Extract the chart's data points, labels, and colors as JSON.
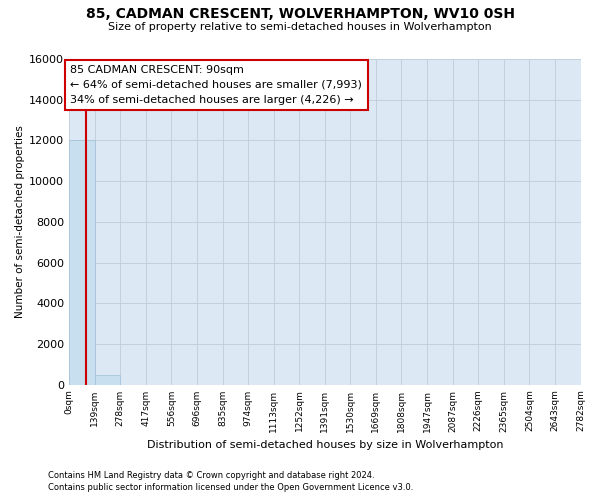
{
  "title_line1": "85, CADMAN CRESCENT, WOLVERHAMPTON, WV10 0SH",
  "title_line2": "Size of property relative to semi-detached houses in Wolverhampton",
  "xlabel": "Distribution of semi-detached houses by size in Wolverhampton",
  "ylabel": "Number of semi-detached properties",
  "bar_color": "#c8dff0",
  "bar_edge_color": "#a0c0d8",
  "grid_color": "#c0ccd8",
  "annotation_box_edgecolor": "#cc0000",
  "annotation_text_line1": "85 CADMAN CRESCENT: 90sqm",
  "annotation_text_line2": "← 64% of semi-detached houses are smaller (7,993)",
  "annotation_text_line3": "34% of semi-detached houses are larger (4,226) →",
  "property_line_color": "#cc0000",
  "property_size_sqm": 90,
  "footnote1": "Contains HM Land Registry data © Crown copyright and database right 2024.",
  "footnote2": "Contains public sector information licensed under the Open Government Licence v3.0.",
  "bin_edges": [
    0,
    139,
    278,
    417,
    556,
    696,
    835,
    974,
    1113,
    1252,
    1391,
    1530,
    1669,
    1808,
    1947,
    2087,
    2226,
    2365,
    2504,
    2643,
    2782
  ],
  "bin_labels": [
    "0sqm",
    "139sqm",
    "278sqm",
    "417sqm",
    "556sqm",
    "696sqm",
    "835sqm",
    "974sqm",
    "1113sqm",
    "1252sqm",
    "1391sqm",
    "1530sqm",
    "1669sqm",
    "1808sqm",
    "1947sqm",
    "2087sqm",
    "2226sqm",
    "2365sqm",
    "2504sqm",
    "2643sqm",
    "2782sqm"
  ],
  "bar_heights": [
    12000,
    500,
    0,
    0,
    0,
    0,
    0,
    0,
    0,
    0,
    0,
    0,
    0,
    0,
    0,
    0,
    0,
    0,
    0,
    0
  ],
  "ylim_max": 16000,
  "yticks": [
    0,
    2000,
    4000,
    6000,
    8000,
    10000,
    12000,
    14000,
    16000
  ],
  "background_color": "#ffffff",
  "plot_bg_color": "#dce8f4"
}
